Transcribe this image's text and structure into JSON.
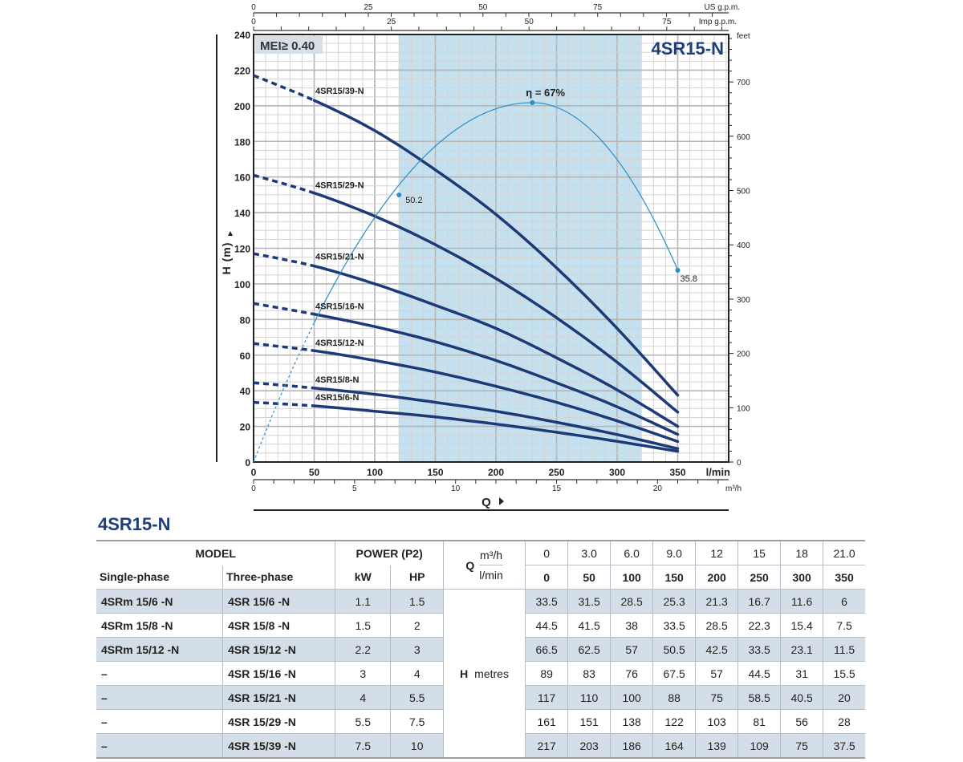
{
  "chart_data": {
    "type": "line",
    "title": "4SR15-N",
    "badge": "MEI≥ 0.40",
    "xlabel": "Q",
    "ylabel": "H (m)",
    "x_unit_primary": "l/min",
    "x_unit_m3h": "m³/h",
    "x_unit_us": "US g.p.m.",
    "x_unit_imp": "Imp g.p.m.",
    "y_unit_feet": "feet",
    "xlim": [
      0,
      392
    ],
    "ylim": [
      0,
      240
    ],
    "x_ticks": [
      "0",
      "50",
      "100",
      "150",
      "200",
      "250",
      "300",
      "350"
    ],
    "x_ticks_m3h": [
      "0",
      "5",
      "10",
      "15",
      "20"
    ],
    "x_ticks_us": [
      "0",
      "25",
      "50",
      "75"
    ],
    "x_ticks_imp": [
      "0",
      "25",
      "50",
      "75"
    ],
    "y_ticks": [
      "0",
      "20",
      "40",
      "60",
      "80",
      "100",
      "120",
      "140",
      "160",
      "180",
      "200",
      "220",
      "240"
    ],
    "y_ticks_feet": [
      "0",
      "100",
      "200",
      "300",
      "400",
      "500",
      "600",
      "700"
    ],
    "shaded_range": [
      120,
      320
    ],
    "series": [
      {
        "name": "4SR15/6-N",
        "x": [
          0,
          50,
          100,
          150,
          200,
          250,
          300,
          350
        ],
        "values": [
          33.5,
          31.5,
          28.5,
          25.3,
          21.3,
          16.7,
          11.6,
          6
        ]
      },
      {
        "name": "4SR15/8-N",
        "x": [
          0,
          50,
          100,
          150,
          200,
          250,
          300,
          350
        ],
        "values": [
          44.5,
          41.5,
          38,
          33.5,
          28.5,
          22.3,
          15.4,
          7.5
        ]
      },
      {
        "name": "4SR15/12-N",
        "x": [
          0,
          50,
          100,
          150,
          200,
          250,
          300,
          350
        ],
        "values": [
          66.5,
          62.5,
          57,
          50.5,
          42.5,
          33.5,
          23.1,
          11.5
        ]
      },
      {
        "name": "4SR15/16-N",
        "x": [
          0,
          50,
          100,
          150,
          200,
          250,
          300,
          350
        ],
        "values": [
          89,
          83,
          76,
          67.5,
          57,
          44.5,
          31,
          15.5
        ]
      },
      {
        "name": "4SR15/21-N",
        "x": [
          0,
          50,
          100,
          150,
          200,
          250,
          300,
          350
        ],
        "values": [
          117,
          110,
          100,
          88,
          75,
          58.5,
          40.5,
          20
        ]
      },
      {
        "name": "4SR15/29-N",
        "x": [
          0,
          50,
          100,
          150,
          200,
          250,
          300,
          350
        ],
        "values": [
          161,
          151,
          138,
          122,
          103,
          81,
          56,
          28
        ]
      },
      {
        "name": "4SR15/39-N",
        "x": [
          0,
          50,
          100,
          150,
          200,
          250,
          300,
          350
        ],
        "values": [
          217,
          203,
          186,
          164,
          139,
          109,
          75,
          37.5
        ]
      }
    ],
    "efficiency": {
      "x": [
        0,
        120,
        230,
        350
      ],
      "values": [
        0,
        50.2,
        67,
        35.8
      ],
      "labels": [
        "50.2",
        "η = 67%",
        "35.8"
      ]
    }
  },
  "table": {
    "title": "4SR15-N",
    "model_label": "MODEL",
    "single_label": "Single-phase",
    "three_label": "Three-phase",
    "power_label": "POWER (P2)",
    "kw_label": "kW",
    "hp_label": "HP",
    "q_label": "Q",
    "m3h_label": "m³/h",
    "lmin_label": "l/min",
    "h_label": "H",
    "metres_label": "metres",
    "m3h": [
      "0",
      "3.0",
      "6.0",
      "9.0",
      "12",
      "15",
      "18",
      "21.0"
    ],
    "lmin": [
      "0",
      "50",
      "100",
      "150",
      "200",
      "250",
      "300",
      "350"
    ],
    "rows": [
      {
        "single": "4SRm 15/6   -N",
        "three": "4SR 15/6   -N",
        "kw": "1.1",
        "hp": "1.5",
        "h": [
          "33.5",
          "31.5",
          "28.5",
          "25.3",
          "21.3",
          "16.7",
          "11.6",
          "6"
        ]
      },
      {
        "single": "4SRm 15/8   -N",
        "three": "4SR 15/8   -N",
        "kw": "1.5",
        "hp": "2",
        "h": [
          "44.5",
          "41.5",
          "38",
          "33.5",
          "28.5",
          "22.3",
          "15.4",
          "7.5"
        ]
      },
      {
        "single": "4SRm 15/12 -N",
        "three": "4SR 15/12 -N",
        "kw": "2.2",
        "hp": "3",
        "h": [
          "66.5",
          "62.5",
          "57",
          "50.5",
          "42.5",
          "33.5",
          "23.1",
          "11.5"
        ]
      },
      {
        "single": "–",
        "three": "4SR 15/16 -N",
        "kw": "3",
        "hp": "4",
        "h": [
          "89",
          "83",
          "76",
          "67.5",
          "57",
          "44.5",
          "31",
          "15.5"
        ]
      },
      {
        "single": "–",
        "three": "4SR 15/21 -N",
        "kw": "4",
        "hp": "5.5",
        "h": [
          "117",
          "110",
          "100",
          "88",
          "75",
          "58.5",
          "40.5",
          "20"
        ]
      },
      {
        "single": "–",
        "three": "4SR 15/29 -N",
        "kw": "5.5",
        "hp": "7.5",
        "h": [
          "161",
          "151",
          "138",
          "122",
          "103",
          "81",
          "56",
          "28"
        ]
      },
      {
        "single": "–",
        "three": "4SR 15/39 -N",
        "kw": "7.5",
        "hp": "10",
        "h": [
          "217",
          "203",
          "186",
          "164",
          "139",
          "109",
          "75",
          "37.5"
        ]
      }
    ]
  },
  "colors": {
    "curve": "#1c3a78",
    "efficiency": "#2a8fc9",
    "shade": "#c5e0ef",
    "title": "#1f3f7a",
    "row_shade": "#d3dee8"
  }
}
